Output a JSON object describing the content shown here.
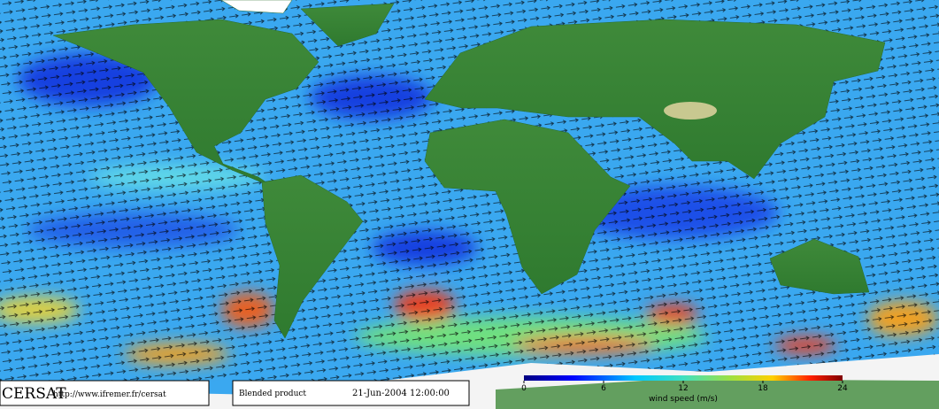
{
  "map": {
    "colorbar": {
      "label": "wind speed (m/s)",
      "lim": [
        0,
        24
      ],
      "ticks": [
        0,
        6,
        12,
        18,
        24
      ]
    }
  },
  "footer": {
    "logo": "CERSAT",
    "url": "http://www.ifremer.fr/cersat",
    "product": "Blended product",
    "date": "21-Jun-2004 12:00:00"
  }
}
